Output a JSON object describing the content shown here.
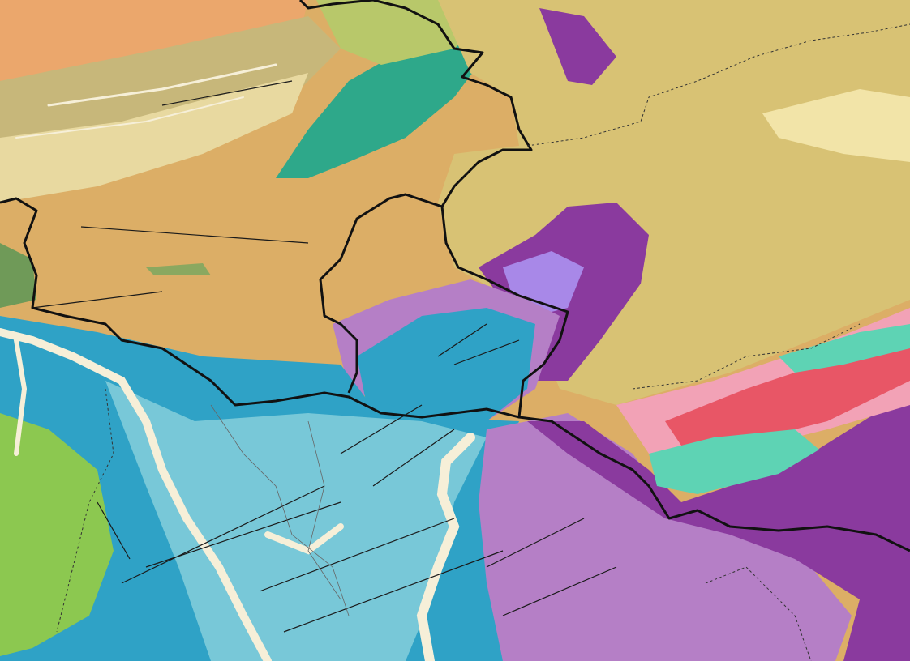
{
  "map": {
    "type": "geological-map",
    "colors": {
      "tan_sediment": "#dcae66",
      "orange_sediment": "#eba76c",
      "khaki_plateau": "#d8c274",
      "pale_yellow": "#f2e4a8",
      "olive_green": "#8aa860",
      "teal_green": "#2ea88a",
      "dark_purple": "#8a3a9e",
      "light_purple": "#b57fc6",
      "lavender": "#a888e8",
      "deep_blue": "#2fa2c6",
      "light_blue": "#78c8d8",
      "lime_green": "#8cc850",
      "red": "#e85666",
      "pink": "#f2a2b6",
      "aqua": "#5ed3b4",
      "river_cream": "#f6efd8",
      "border_black": "#111111"
    }
  }
}
